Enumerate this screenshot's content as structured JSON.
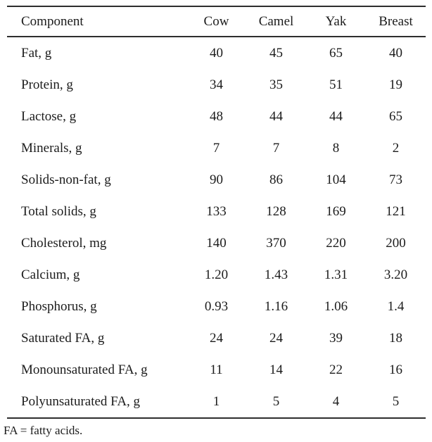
{
  "table": {
    "columns": [
      "Component",
      "Cow",
      "Camel",
      "Yak",
      "Breast"
    ],
    "rows": [
      {
        "component": "Fat, g",
        "values": [
          "40",
          "45",
          "65",
          "40"
        ]
      },
      {
        "component": "Protein, g",
        "values": [
          "34",
          "35",
          "51",
          "19"
        ]
      },
      {
        "component": "Lactose, g",
        "values": [
          "48",
          "44",
          "44",
          "65"
        ]
      },
      {
        "component": "Minerals, g",
        "values": [
          "7",
          "7",
          "8",
          "2"
        ]
      },
      {
        "component": "Solids-non-fat, g",
        "values": [
          "90",
          "86",
          "104",
          "73"
        ]
      },
      {
        "component": "Total solids, g",
        "values": [
          "133",
          "128",
          "169",
          "121"
        ]
      },
      {
        "component": "Cholesterol, mg",
        "values": [
          "140",
          "370",
          "220",
          "200"
        ]
      },
      {
        "component": "Calcium, g",
        "values": [
          "1.20",
          "1.43",
          "1.31",
          "3.20"
        ]
      },
      {
        "component": "Phosphorus, g",
        "values": [
          "0.93",
          "1.16",
          "1.06",
          "1.4"
        ]
      },
      {
        "component": "Saturated FA, g",
        "values": [
          "24",
          "24",
          "39",
          "18"
        ]
      },
      {
        "component": "Monounsaturated FA, g",
        "values": [
          "11",
          "14",
          "22",
          "16"
        ]
      },
      {
        "component": "Polyunsaturated FA, g",
        "values": [
          "1",
          "5",
          "4",
          "5"
        ]
      }
    ],
    "footnote": "FA = fatty acids.",
    "text_color": "#1c1c1c",
    "rule_color": "#2d2d2d"
  }
}
